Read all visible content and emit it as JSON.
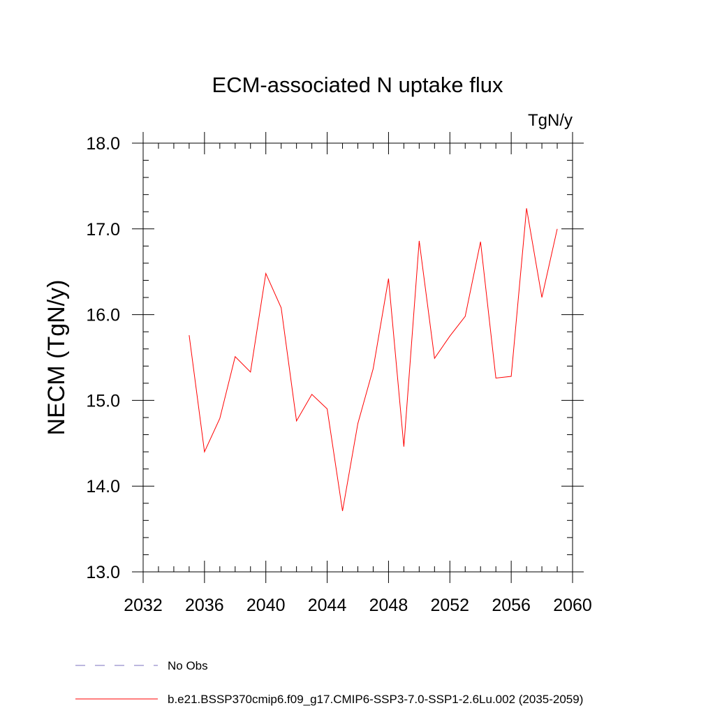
{
  "chart_data": {
    "type": "line",
    "title": "ECM-associated N uptake flux",
    "units": "TgN/y",
    "ylabel": "NECM  (TgN/y)",
    "xlabel": "",
    "xlim": [
      2032,
      2060
    ],
    "ylim": [
      13.0,
      18.0
    ],
    "x_ticks": [
      2032,
      2036,
      2040,
      2044,
      2048,
      2052,
      2056,
      2060
    ],
    "x_tick_labels": [
      "2032",
      "2036",
      "2040",
      "2044",
      "2048",
      "2052",
      "2056",
      "2060"
    ],
    "y_ticks": [
      13.0,
      14.0,
      15.0,
      16.0,
      17.0,
      18.0
    ],
    "y_tick_labels": [
      "13.0",
      "14.0",
      "15.0",
      "16.0",
      "17.0",
      "18.0"
    ],
    "x_minor_step": 1,
    "y_minor_step": 0.2,
    "series": [
      {
        "name": "b.e21.BSSP370cmip6.f09_g17.CMIP6-SSP3-7.0-SSP1-2.6Lu.002 (2035-2059)",
        "color": "#ff0000",
        "style": "solid",
        "x": [
          2035,
          2036,
          2037,
          2038,
          2039,
          2040,
          2041,
          2042,
          2043,
          2044,
          2045,
          2046,
          2047,
          2048,
          2049,
          2050,
          2051,
          2052,
          2053,
          2054,
          2055,
          2056,
          2057,
          2058,
          2059
        ],
        "y": [
          15.76,
          14.4,
          14.79,
          15.51,
          15.33,
          16.48,
          16.08,
          14.76,
          15.07,
          14.9,
          13.71,
          14.73,
          15.37,
          16.42,
          14.46,
          16.86,
          15.49,
          15.75,
          15.98,
          16.85,
          15.26,
          15.28,
          17.24,
          16.2,
          17.0
        ]
      }
    ],
    "legend": [
      {
        "label": "No Obs",
        "color": "#7b6fbf",
        "style": "dashed"
      },
      {
        "label": "b.e21.BSSP370cmip6.f09_g17.CMIP6-SSP3-7.0-SSP1-2.6Lu.002 (2035-2059)",
        "color": "#ff0000",
        "style": "solid"
      }
    ],
    "legend_position": "bottom-left"
  }
}
